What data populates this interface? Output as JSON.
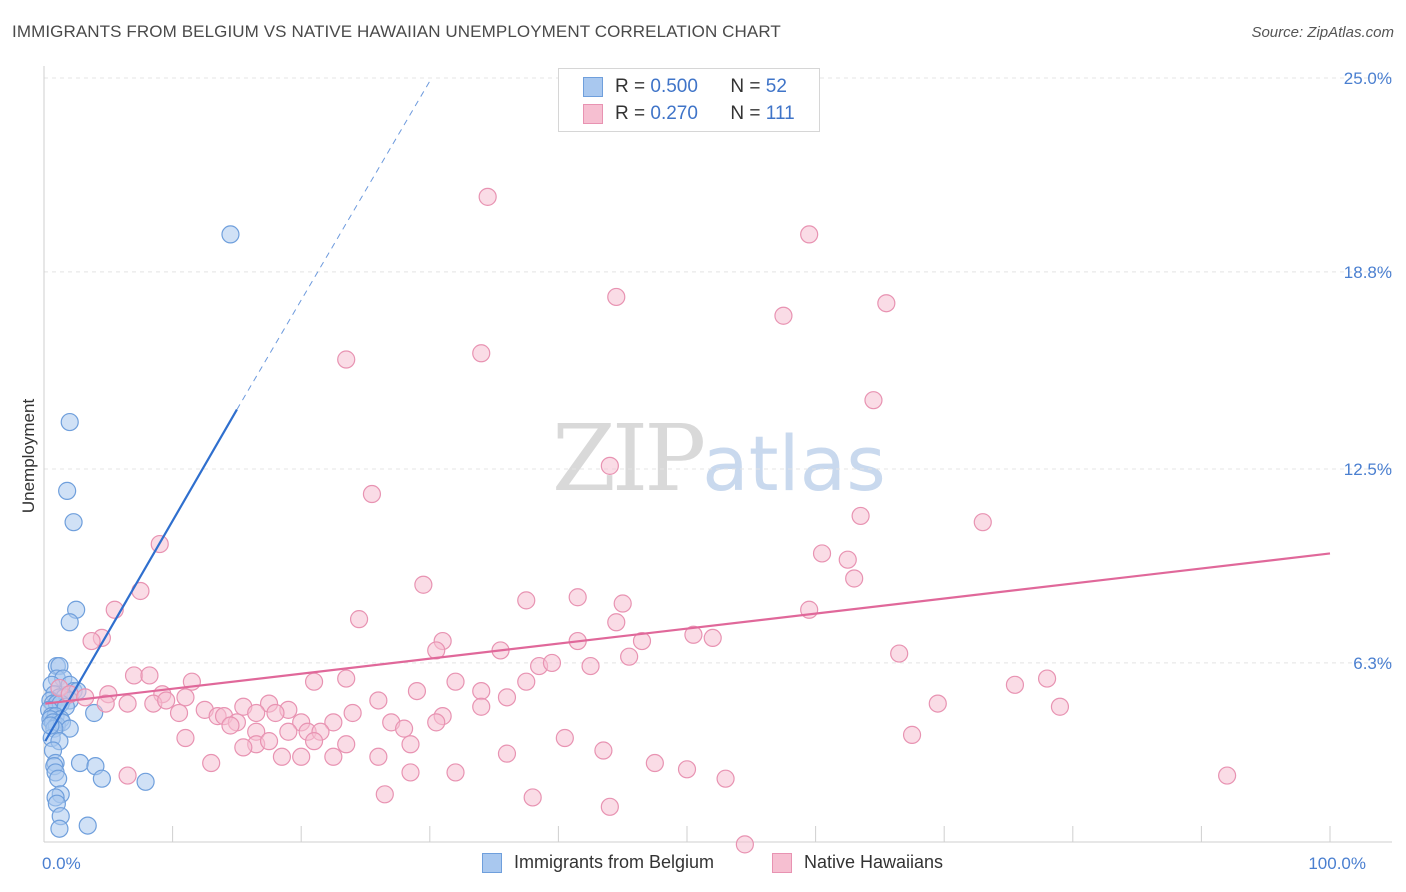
{
  "header": {
    "title": "IMMIGRANTS FROM BELGIUM VS NATIVE HAWAIIAN UNEMPLOYMENT CORRELATION CHART",
    "source": "Source: ZipAtlas.com"
  },
  "watermark": {
    "zip": "ZIP",
    "atlas": "atlas"
  },
  "legend_top": {
    "rows": [
      {
        "r_label": "R =",
        "r_value": "0.500",
        "n_label": "N =",
        "n_value": "52"
      },
      {
        "r_label": "R =",
        "r_value": "0.270",
        "n_label": "N =",
        "n_value": "111"
      }
    ]
  },
  "colors": {
    "blue_fill": "#a9c8ef",
    "blue_stroke": "#6f9fdc",
    "blue_line": "#2f6fce",
    "pink_fill": "#f6bfd1",
    "pink_stroke": "#e893b2",
    "pink_line": "#e0689a",
    "axis_text": "#4a7fd0",
    "grid": "#e4e4e4"
  },
  "chart_data": {
    "type": "scatter",
    "title": "IMMIGRANTS FROM BELGIUM VS NATIVE HAWAIIAN UNEMPLOYMENT CORRELATION CHART",
    "xlabel": "",
    "ylabel": "Unemployment",
    "xlim": [
      0,
      100
    ],
    "ylim": [
      0,
      25
    ],
    "x_tick_labels": [
      {
        "value": 0,
        "label": "0.0%"
      },
      {
        "value": 100,
        "label": "100.0%"
      }
    ],
    "y_tick_labels": [
      {
        "value": 6.3,
        "label": "6.3%"
      },
      {
        "value": 12.5,
        "label": "12.5%"
      },
      {
        "value": 18.8,
        "label": "18.8%"
      },
      {
        "value": 25.0,
        "label": "25.0%"
      }
    ],
    "grid": true,
    "legend_position": "bottom",
    "series": [
      {
        "name": "Immigrants from Belgium",
        "color": "#a9c8ef",
        "r": 0.5,
        "n": 52,
        "trend": {
          "x0": 0.1,
          "y0": 3.8,
          "x1": 15.0,
          "y1": 14.4,
          "dash_x1": 30.0,
          "dash_y1": 24.9
        },
        "points": [
          [
            14.5,
            20.0
          ],
          [
            2.0,
            14.0
          ],
          [
            1.8,
            11.8
          ],
          [
            2.3,
            10.8
          ],
          [
            2.5,
            8.0
          ],
          [
            2.0,
            7.6
          ],
          [
            1.0,
            6.2
          ],
          [
            1.2,
            6.2
          ],
          [
            1.0,
            5.8
          ],
          [
            1.5,
            5.8
          ],
          [
            2.0,
            5.6
          ],
          [
            2.3,
            5.4
          ],
          [
            2.6,
            5.4
          ],
          [
            0.6,
            5.6
          ],
          [
            0.8,
            5.3
          ],
          [
            1.2,
            5.2
          ],
          [
            1.6,
            5.2
          ],
          [
            2.0,
            5.1
          ],
          [
            0.5,
            5.1
          ],
          [
            0.7,
            5.0
          ],
          [
            1.0,
            5.0
          ],
          [
            1.3,
            5.0
          ],
          [
            1.7,
            4.9
          ],
          [
            0.4,
            4.8
          ],
          [
            0.6,
            4.6
          ],
          [
            0.9,
            4.6
          ],
          [
            1.3,
            4.5
          ],
          [
            0.5,
            4.5
          ],
          [
            0.7,
            4.4
          ],
          [
            1.0,
            4.3
          ],
          [
            1.4,
            4.4
          ],
          [
            2.0,
            4.2
          ],
          [
            0.8,
            4.2
          ],
          [
            3.9,
            4.7
          ],
          [
            0.6,
            3.9
          ],
          [
            1.2,
            3.8
          ],
          [
            0.7,
            3.5
          ],
          [
            0.9,
            3.1
          ],
          [
            0.8,
            3.0
          ],
          [
            2.8,
            3.1
          ],
          [
            4.0,
            3.0
          ],
          [
            0.9,
            2.8
          ],
          [
            1.1,
            2.6
          ],
          [
            4.5,
            2.6
          ],
          [
            7.9,
            2.5
          ],
          [
            1.3,
            2.1
          ],
          [
            0.9,
            2.0
          ],
          [
            1.0,
            1.8
          ],
          [
            1.3,
            1.4
          ],
          [
            3.4,
            1.1
          ],
          [
            1.2,
            1.0
          ],
          [
            0.5,
            4.3
          ]
        ]
      },
      {
        "name": "Native Hawaiians",
        "color": "#f6bfd1",
        "r": 0.27,
        "n": 111,
        "trend": {
          "x0": 0.1,
          "y0": 5.0,
          "x1": 100.0,
          "y1": 9.8
        },
        "points": [
          [
            34.5,
            21.2
          ],
          [
            59.5,
            20.0
          ],
          [
            44.5,
            18.0
          ],
          [
            65.5,
            17.8
          ],
          [
            57.5,
            17.4
          ],
          [
            34.0,
            16.2
          ],
          [
            23.5,
            16.0
          ],
          [
            64.5,
            14.7
          ],
          [
            44.0,
            12.6
          ],
          [
            25.5,
            11.7
          ],
          [
            63.5,
            11.0
          ],
          [
            73.0,
            10.8
          ],
          [
            9.0,
            10.1
          ],
          [
            60.5,
            9.8
          ],
          [
            62.5,
            9.6
          ],
          [
            63.0,
            9.0
          ],
          [
            29.5,
            8.8
          ],
          [
            7.5,
            8.6
          ],
          [
            37.5,
            8.3
          ],
          [
            41.5,
            8.4
          ],
          [
            45.0,
            8.2
          ],
          [
            59.5,
            8.0
          ],
          [
            5.5,
            8.0
          ],
          [
            24.5,
            7.7
          ],
          [
            44.5,
            7.6
          ],
          [
            4.5,
            7.1
          ],
          [
            31.0,
            7.0
          ],
          [
            3.7,
            7.0
          ],
          [
            41.5,
            7.0
          ],
          [
            50.5,
            7.2
          ],
          [
            52.0,
            7.1
          ],
          [
            46.5,
            7.0
          ],
          [
            30.5,
            6.7
          ],
          [
            35.5,
            6.7
          ],
          [
            66.5,
            6.6
          ],
          [
            45.5,
            6.5
          ],
          [
            38.5,
            6.2
          ],
          [
            42.5,
            6.2
          ],
          [
            39.5,
            6.3
          ],
          [
            7.0,
            5.9
          ],
          [
            8.2,
            5.9
          ],
          [
            23.5,
            5.8
          ],
          [
            32.0,
            5.7
          ],
          [
            75.5,
            5.6
          ],
          [
            78.0,
            5.8
          ],
          [
            11.5,
            5.7
          ],
          [
            21.0,
            5.7
          ],
          [
            37.5,
            5.7
          ],
          [
            34.0,
            5.4
          ],
          [
            29.0,
            5.4
          ],
          [
            36.0,
            5.2
          ],
          [
            1.2,
            5.5
          ],
          [
            2.0,
            5.3
          ],
          [
            3.2,
            5.2
          ],
          [
            5.0,
            5.3
          ],
          [
            9.2,
            5.3
          ],
          [
            26.0,
            5.1
          ],
          [
            11.0,
            5.2
          ],
          [
            4.8,
            5.0
          ],
          [
            8.5,
            5.0
          ],
          [
            9.5,
            5.1
          ],
          [
            6.5,
            5.0
          ],
          [
            69.5,
            5.0
          ],
          [
            79.0,
            4.9
          ],
          [
            15.5,
            4.9
          ],
          [
            17.5,
            5.0
          ],
          [
            19.0,
            4.8
          ],
          [
            34.0,
            4.9
          ],
          [
            12.5,
            4.8
          ],
          [
            10.5,
            4.7
          ],
          [
            13.5,
            4.6
          ],
          [
            14.0,
            4.6
          ],
          [
            16.5,
            4.7
          ],
          [
            18.0,
            4.7
          ],
          [
            24.0,
            4.7
          ],
          [
            31.0,
            4.6
          ],
          [
            15.0,
            4.4
          ],
          [
            20.0,
            4.4
          ],
          [
            22.5,
            4.4
          ],
          [
            27.0,
            4.4
          ],
          [
            30.5,
            4.4
          ],
          [
            14.5,
            4.3
          ],
          [
            16.5,
            4.1
          ],
          [
            19.0,
            4.1
          ],
          [
            20.5,
            4.1
          ],
          [
            21.5,
            4.1
          ],
          [
            28.0,
            4.2
          ],
          [
            67.5,
            4.0
          ],
          [
            11.0,
            3.9
          ],
          [
            16.5,
            3.7
          ],
          [
            17.5,
            3.8
          ],
          [
            21.0,
            3.8
          ],
          [
            23.5,
            3.7
          ],
          [
            28.5,
            3.7
          ],
          [
            40.5,
            3.9
          ],
          [
            15.5,
            3.6
          ],
          [
            36.0,
            3.4
          ],
          [
            18.5,
            3.3
          ],
          [
            20.0,
            3.3
          ],
          [
            22.5,
            3.3
          ],
          [
            26.0,
            3.3
          ],
          [
            43.5,
            3.5
          ],
          [
            47.5,
            3.1
          ],
          [
            50.0,
            2.9
          ],
          [
            13.0,
            3.1
          ],
          [
            28.5,
            2.8
          ],
          [
            32.0,
            2.8
          ],
          [
            6.5,
            2.7
          ],
          [
            53.0,
            2.6
          ],
          [
            92.0,
            2.7
          ],
          [
            26.5,
            2.1
          ],
          [
            38.0,
            2.0
          ],
          [
            44.0,
            1.7
          ],
          [
            54.5,
            0.5
          ]
        ]
      }
    ]
  }
}
